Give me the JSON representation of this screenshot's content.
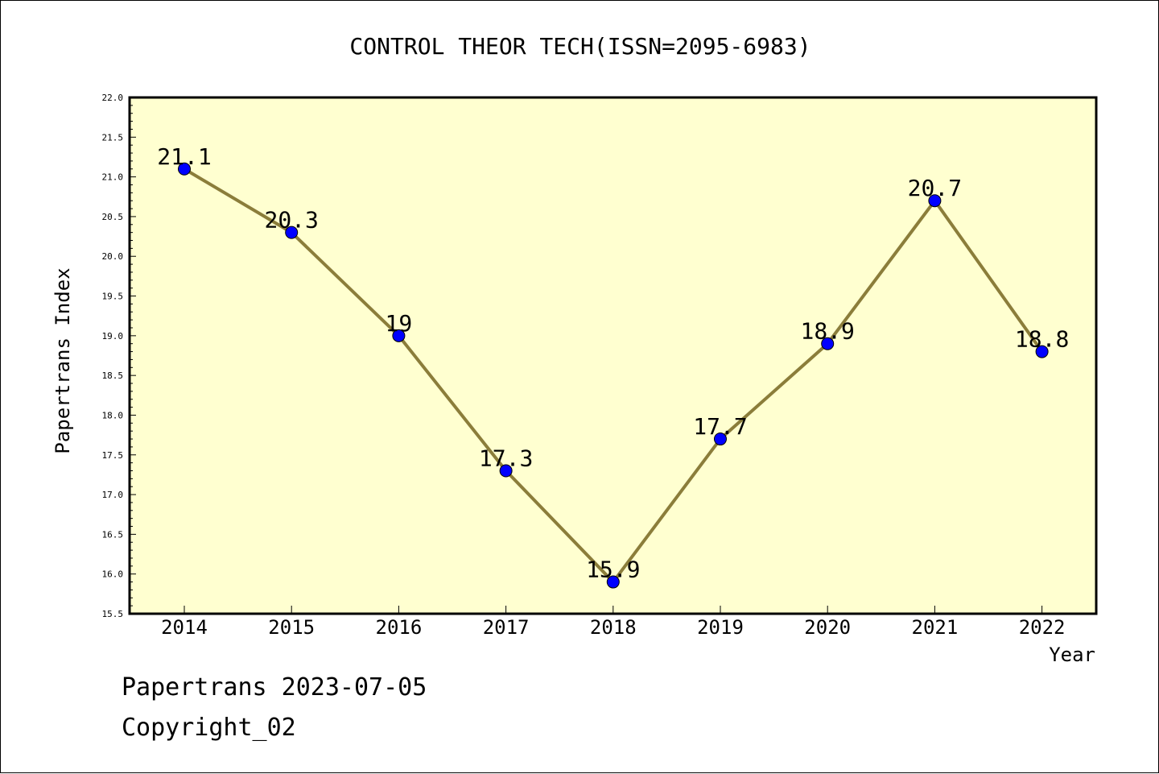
{
  "footer": {
    "line1": "Papertrans 2023-07-05",
    "line2": "Copyright_02"
  },
  "chart_data": {
    "type": "line",
    "title": "CONTROL THEOR TECH(ISSN=2095-6983)",
    "xlabel": "Year",
    "ylabel": "Papertrans Index",
    "categories": [
      "2014",
      "2015",
      "2016",
      "2017",
      "2018",
      "2019",
      "2020",
      "2021",
      "2022"
    ],
    "values": [
      21.1,
      20.3,
      19.0,
      17.3,
      15.9,
      17.7,
      18.9,
      20.7,
      18.8
    ],
    "data_labels": [
      "21.1",
      "20.3",
      "19",
      "17.3",
      "15.9",
      "17.7",
      "18.9",
      "20.7",
      "18.8"
    ],
    "ylim": [
      15.5,
      22.0
    ],
    "ytick_labels": [
      "15.5",
      "16.0",
      "16.5",
      "17.0",
      "17.5",
      "18.0",
      "18.5",
      "19.0",
      "19.5",
      "20.0",
      "20.5",
      "21.0",
      "21.5",
      "22.0"
    ],
    "grid": false,
    "colors": {
      "plot_background": "#ffffd0",
      "line": "#8b7d3a",
      "marker": "#0000ff"
    }
  }
}
